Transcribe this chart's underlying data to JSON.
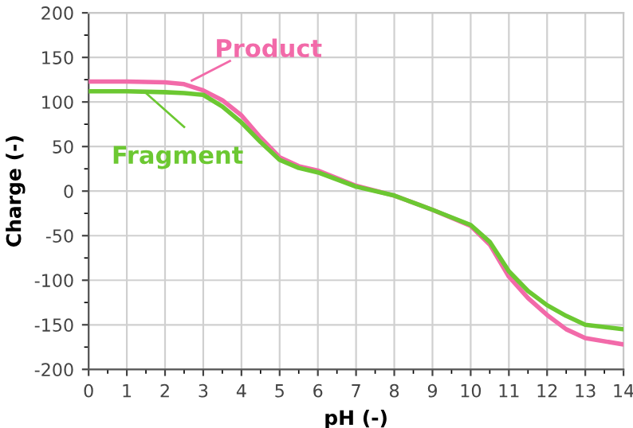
{
  "chart_data": {
    "type": "line",
    "xlabel": "pH (-)",
    "ylabel": "Charge (-)",
    "x": [
      0,
      1,
      2,
      2.5,
      3,
      3.5,
      4,
      4.5,
      5,
      5.5,
      6,
      7,
      8,
      9,
      10,
      10.5,
      11,
      11.5,
      12,
      12.5,
      13,
      14
    ],
    "series": [
      {
        "name": "Product",
        "color": "#f26aa9",
        "values": [
          123,
          123,
          122,
          120,
          113,
          102,
          85,
          60,
          38,
          28,
          23,
          6,
          -5,
          -21,
          -39,
          -60,
          -96,
          -120,
          -139,
          -155,
          -165,
          -172
        ]
      },
      {
        "name": "Fragment",
        "color": "#6cc832",
        "values": [
          112,
          112,
          111,
          110,
          108,
          95,
          77,
          55,
          35,
          26,
          21,
          5,
          -5,
          -21,
          -38,
          -57,
          -90,
          -112,
          -128,
          -140,
          -150,
          -155
        ]
      }
    ],
    "xlim": [
      0,
      14
    ],
    "xticks": [
      0,
      1,
      2,
      3,
      4,
      5,
      6,
      7,
      8,
      9,
      10,
      11,
      12,
      13,
      14
    ],
    "ylim": [
      -200,
      200
    ],
    "yticks": [
      -200,
      -150,
      -100,
      -50,
      0,
      50,
      100,
      150,
      200
    ],
    "grid": true,
    "legend": "top left",
    "marker": "none",
    "line_style": "solid"
  }
}
